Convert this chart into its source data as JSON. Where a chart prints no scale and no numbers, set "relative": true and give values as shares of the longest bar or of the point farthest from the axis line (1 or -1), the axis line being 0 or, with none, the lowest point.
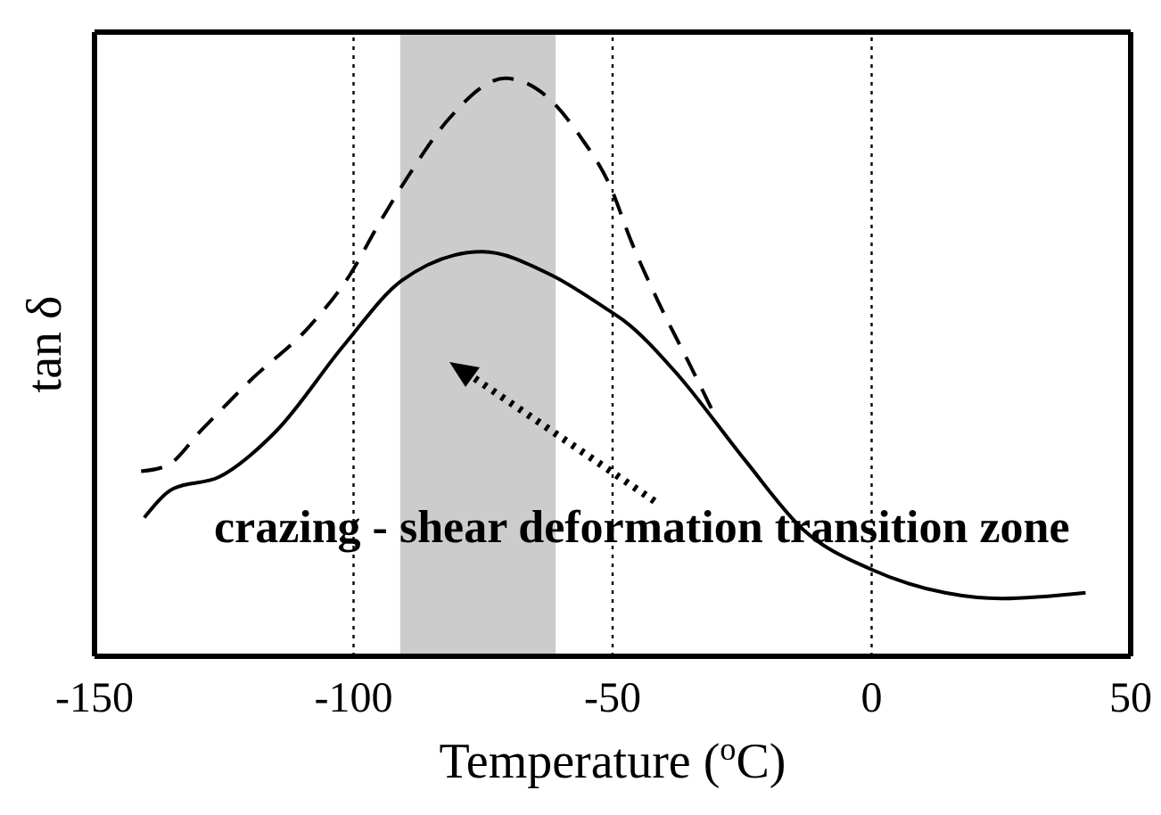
{
  "chart_data": {
    "type": "line",
    "relative": true,
    "xlabel": "Temperature ($^{o}$C)",
    "ylabel": "tan δ",
    "xlim": [
      -150,
      50
    ],
    "xticks": [
      -150,
      -100,
      -50,
      0,
      50
    ],
    "grid": false,
    "marker": "none",
    "series": [
      {
        "color": "#000000",
        "line_style": "dashed",
        "x": [
          -141,
          -136,
          -129.5,
          -119.6,
          -108.6,
          -100.7,
          -95,
          -89.5,
          -81.6,
          -70.7,
          -62.9,
          -56.3,
          -50.3,
          -46.5,
          -41,
          -35.4,
          -29.9
        ],
        "values": [
          0.32,
          0.33,
          0.39,
          0.48,
          0.57,
          0.66,
          0.75,
          0.83,
          0.93,
          1,
          0.97,
          0.9,
          0.81,
          0.72,
          0.61,
          0.51,
          0.41
        ]
      },
      {
        "color": "#000000",
        "line_style": "solid",
        "x": [
          -140.4,
          -134.8,
          -126,
          -114.9,
          -101.7,
          -90.7,
          -75.2,
          -61.9,
          -51,
          -47.7,
          -37.7,
          -24.5,
          -13.3,
          0,
          14.2,
          25.2,
          41.3
        ],
        "values": [
          0.24,
          0.29,
          0.31,
          0.39,
          0.54,
          0.65,
          0.7,
          0.66,
          0.6,
          0.58,
          0.49,
          0.34,
          0.22,
          0.15,
          0.11,
          0.1,
          0.11
        ]
      }
    ],
    "ref_lines": [
      {
        "axis": "x",
        "value": -100,
        "color": "#000000",
        "line_style": "dotted"
      },
      {
        "axis": "x",
        "value": -50,
        "color": "#000000",
        "line_style": "dotted"
      },
      {
        "axis": "x",
        "value": 0,
        "color": "#000000",
        "line_style": "dotted"
      }
    ],
    "bands": [
      {
        "axis": "x",
        "from": -91,
        "to": -61,
        "color": "#cccccc"
      }
    ],
    "annotations": [
      "crazing - shear deformation transition zone"
    ]
  }
}
